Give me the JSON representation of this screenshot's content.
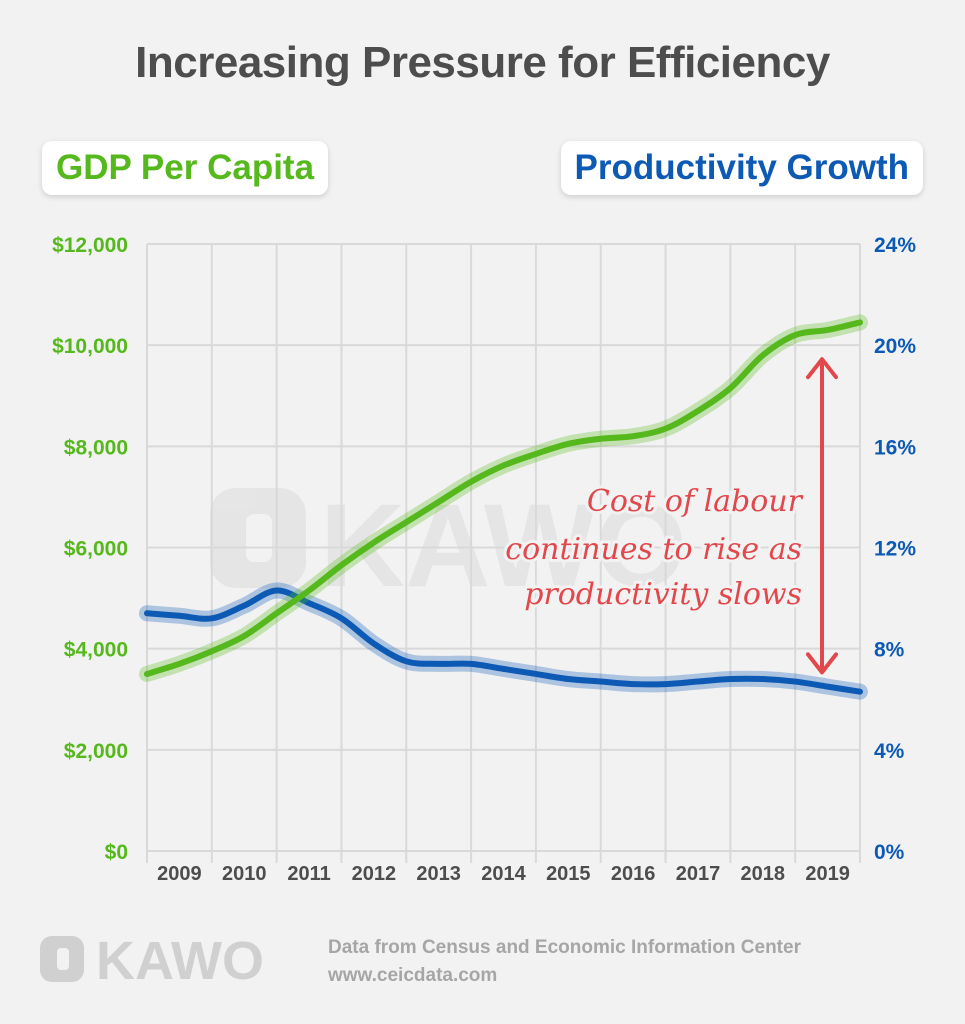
{
  "title": "Increasing Pressure for Efficiency",
  "legend": {
    "left": "GDP Per Capita",
    "right": "Productivity Growth"
  },
  "colors": {
    "gdp": "#55b81c",
    "productivity": "#0d5ab5",
    "annotation": "#e2474b",
    "grid": "#d9d9d9",
    "logo": "#d0d0d0"
  },
  "annotation": {
    "lines": [
      "Cost of labour",
      "continues to rise as",
      "productivity slows"
    ]
  },
  "watermark": "KAWO",
  "logo_text": "KAWO",
  "source": {
    "line1": "Data from Census and Economic Information Center",
    "line2": "www.ceicdata.com"
  },
  "chart_data": {
    "type": "line",
    "x": [
      2008.5,
      2009,
      2009.5,
      2010,
      2010.5,
      2011,
      2011.5,
      2012,
      2012.5,
      2013,
      2013.5,
      2014,
      2014.5,
      2015,
      2015.5,
      2016,
      2016.5,
      2017,
      2017.5,
      2018,
      2018.5,
      2019,
      2019.5
    ],
    "categories": [
      "2009",
      "2010",
      "2011",
      "2012",
      "2013",
      "2014",
      "2015",
      "2016",
      "2017",
      "2018",
      "2019"
    ],
    "series": [
      {
        "name": "GDP Per Capita",
        "axis": "left",
        "values": [
          3500,
          3700,
          3950,
          4250,
          4700,
          5150,
          5650,
          6100,
          6500,
          6900,
          7300,
          7620,
          7850,
          8050,
          8150,
          8200,
          8350,
          8700,
          9150,
          9800,
          10200,
          10300,
          10450
        ]
      },
      {
        "name": "Productivity Growth",
        "axis": "right",
        "values": [
          9.4,
          9.3,
          9.2,
          9.7,
          10.3,
          9.8,
          9.2,
          8.2,
          7.5,
          7.4,
          7.4,
          7.2,
          7.0,
          6.8,
          6.7,
          6.6,
          6.6,
          6.7,
          6.8,
          6.8,
          6.7,
          6.5,
          6.3
        ]
      }
    ],
    "y_left": {
      "ticks": [
        "$0",
        "$2,000",
        "$4,000",
        "$6,000",
        "$8,000",
        "$10,000",
        "$12,000"
      ],
      "range": [
        0,
        12000
      ]
    },
    "y_right": {
      "ticks": [
        "0%",
        "4%",
        "8%",
        "12%",
        "16%",
        "20%",
        "24%"
      ],
      "range": [
        0,
        24
      ]
    },
    "grid": true,
    "annotation_arrow": {
      "from": 20,
      "to": 7.3,
      "axis": "right",
      "x": 2019
    }
  }
}
